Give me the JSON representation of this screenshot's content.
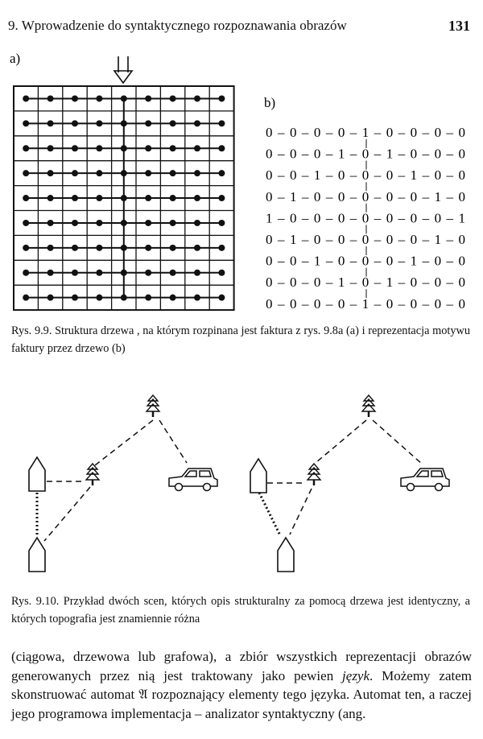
{
  "header": {
    "title": "9. Wprowadzenie do syntaktycznego rozpoznawania obrazów",
    "page_number": "131"
  },
  "figure_9_9": {
    "label_a": "a)",
    "label_b": "b)",
    "tree_rows": [
      "0 – 0 – 0 – 0 – 1 – 0 – 0 – 0 – 0",
      "0 – 0 – 0 – 1 – 0 – 1 – 0 – 0 – 0",
      "0 – 0 – 1 – 0 – 0 – 0 – 1 – 0 – 0",
      "0 – 1 – 0 – 0 – 0 – 0 – 0 – 1 – 0",
      "1 – 0 – 0 – 0 – 0 – 0 – 0 – 0 – 1",
      "0 – 1 – 0 – 0 – 0 – 0 – 0 – 1 – 0",
      "0 – 0 – 1 – 0 – 0 – 0 – 1 – 0 – 0",
      "0 – 0 – 0 – 1 – 0 – 1 – 0 – 0 – 0",
      "0 – 0 – 0 – 0 – 1 – 0 – 0 – 0 – 0"
    ],
    "caption": "Rys. 9.9. Struktura drzewa , na którym rozpinana jest faktura z rys. 9.8a (a) i reprezentacja motywu faktury przez drzewo (b)"
  },
  "figure_9_10": {
    "caption": "Rys. 9.10. Przykład dwóch scen, których opis strukturalny za pomocą drzewa jest identyczny, a których topografia jest znamiennie różna"
  },
  "body": {
    "segments": [
      "(ciągowa, drzewowa lub grafowa), a zbiór wszystkich reprezentacji obrazów generowanych przez nią jest traktowany jako pewien ",
      "język",
      ". Możemy zatem skonstruować automat 𝔄 rozpoznający elementy tego języka. Automat ten, a raczej jego programowa implementacja – analizator syntaktyczny (ang."
    ]
  }
}
